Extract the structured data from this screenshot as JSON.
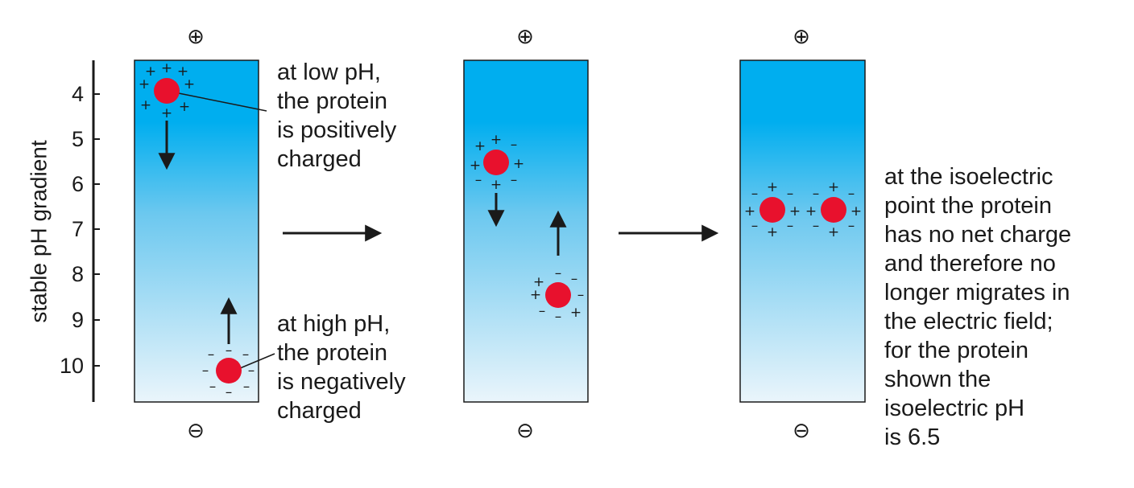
{
  "axis": {
    "label": "stable pH gradient",
    "ticks": [
      "4",
      "5",
      "6",
      "7",
      "8",
      "9",
      "10"
    ]
  },
  "panels": {
    "one": {
      "top_pole": "⊕",
      "bottom_pole": "⊖"
    },
    "two": {
      "top_pole": "⊕",
      "bottom_pole": "⊖"
    },
    "three": {
      "top_pole": "⊕",
      "bottom_pole": "⊖"
    }
  },
  "labels": {
    "low_ph": [
      "at low pH,",
      "the protein",
      "is positively",
      "charged"
    ],
    "high_ph": [
      "at high pH,",
      "the protein",
      "is negatively",
      "charged"
    ],
    "isoelectric": [
      "at the isoelectric",
      "point the protein",
      "has no net charge",
      "and therefore no",
      "longer migrates in",
      "the electric field;",
      "for the protein",
      "shown the",
      "isoelectric pH",
      "is 6.5"
    ]
  },
  "symbols": {
    "plus": "+",
    "minus": "–"
  },
  "colors": {
    "gel_top": "#00aeef",
    "gel_bottom": "#e8f4fb",
    "protein": "#e8112d",
    "line": "#1a1a1a"
  }
}
